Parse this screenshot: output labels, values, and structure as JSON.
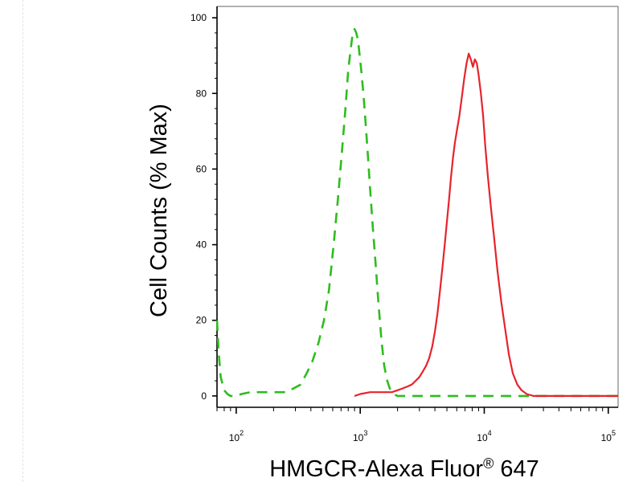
{
  "chart_data": {
    "type": "line",
    "title": "",
    "xlabel": "HMGCR-Alexa Fluor",
    "xlabel_superscript": "®",
    "xlabel_suffix": " 647",
    "ylabel": "Cell Counts (% Max)",
    "x_scale": "log",
    "xlim": [
      70,
      120000
    ],
    "ylim": [
      -3,
      103
    ],
    "x_ticks": [
      {
        "value": 100,
        "base": "10",
        "exp": "2"
      },
      {
        "value": 1000,
        "base": "10",
        "exp": "3"
      },
      {
        "value": 10000,
        "base": "10",
        "exp": "4"
      },
      {
        "value": 100000,
        "base": "10",
        "exp": "5"
      }
    ],
    "y_ticks": [
      0,
      20,
      40,
      60,
      80,
      100
    ],
    "grid": false,
    "legend": "none",
    "series": [
      {
        "color": "#2ebd1e",
        "style": "dashed",
        "x": [
          70,
          72,
          75,
          80,
          85,
          90,
          95,
          100,
          110,
          130,
          150,
          180,
          210,
          250,
          290,
          330,
          370,
          410,
          460,
          510,
          560,
          610,
          660,
          710,
          760,
          800,
          840,
          870,
          900,
          930,
          960,
          990,
          1020,
          1060,
          1100,
          1150,
          1200,
          1260,
          1330,
          1400,
          1480,
          1560,
          1650,
          1750,
          1850,
          2000,
          2300,
          3000,
          5000,
          10000,
          30000,
          100000,
          120000
        ],
        "y": [
          20,
          12,
          5,
          1.5,
          0.5,
          0,
          0,
          0,
          0.5,
          1,
          1,
          1,
          1,
          1,
          2,
          3,
          6,
          9,
          14,
          20,
          28,
          40,
          52,
          64,
          76,
          86,
          92,
          96,
          97,
          96,
          94,
          90,
          86,
          80,
          73,
          64,
          55,
          45,
          35,
          25,
          15,
          8,
          4,
          1.5,
          0.5,
          0,
          0,
          0,
          0,
          0,
          0,
          0,
          0
        ]
      },
      {
        "color": "#e8232b",
        "style": "solid",
        "x": [
          900,
          1000,
          1200,
          1500,
          1800,
          2000,
          2200,
          2400,
          2600,
          2800,
          3000,
          3200,
          3400,
          3600,
          3800,
          4000,
          4200,
          4400,
          4600,
          4800,
          5000,
          5200,
          5400,
          5600,
          5800,
          6000,
          6300,
          6600,
          6900,
          7200,
          7500,
          7800,
          8100,
          8400,
          8700,
          9000,
          9400,
          9800,
          10200,
          10700,
          11300,
          12000,
          12800,
          13700,
          14700,
          15800,
          17000,
          18500,
          20000,
          22000,
          25000,
          28000,
          32000,
          40000,
          60000,
          100000,
          120000
        ],
        "y": [
          0,
          0.5,
          1,
          1,
          1,
          1.5,
          2,
          2.5,
          3,
          4,
          5,
          6.5,
          8,
          10,
          13,
          17,
          22,
          28,
          34,
          40,
          46,
          52,
          58,
          63,
          67,
          70,
          74,
          79,
          84,
          88,
          90.5,
          89,
          87,
          89,
          88,
          85,
          80,
          74,
          66,
          58,
          50,
          42,
          33,
          25,
          18,
          11,
          6,
          3,
          1.5,
          0.5,
          0,
          0,
          0,
          0,
          0,
          0,
          0
        ]
      }
    ]
  }
}
